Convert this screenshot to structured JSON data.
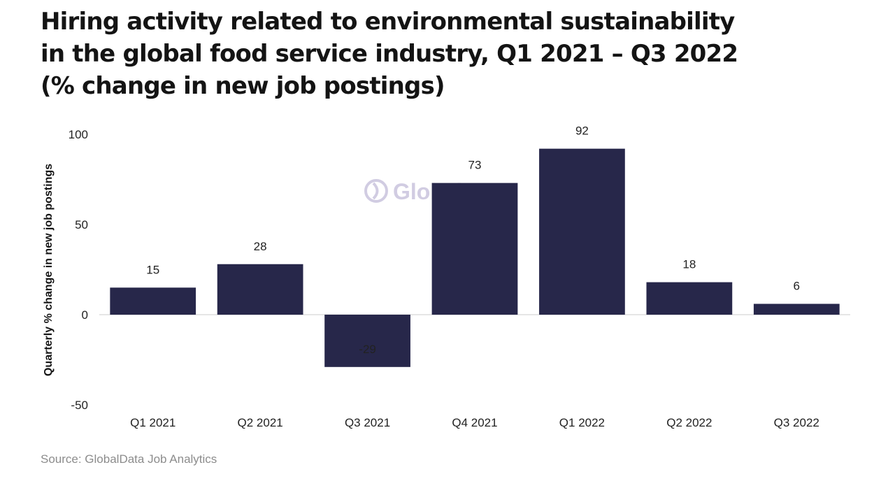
{
  "title": "Hiring activity related to environmental sustainability in the global food service industry, Q1 2021 – Q3 2022 (% change in new job postings)",
  "source": "Source: GlobalData Job Analytics",
  "watermark": "GlobalData.",
  "colors": {
    "bar": "#27274a",
    "axis": "#cccccc",
    "watermark": "#c9c4dd"
  },
  "chart_data": {
    "type": "bar",
    "title": "Hiring activity related to environmental sustainability in the global food service industry, Q1 2021 – Q3 2022 (% change in new job postings)",
    "xlabel": "",
    "ylabel": "Quarterly % change in new job postings",
    "categories": [
      "Q1 2021",
      "Q2 2021",
      "Q3 2021",
      "Q4 2021",
      "Q1 2022",
      "Q2 2022",
      "Q3 2022"
    ],
    "values": [
      15,
      28,
      -29,
      73,
      92,
      18,
      6
    ],
    "data_labels": [
      "15",
      "28",
      "-29",
      "73",
      "92",
      "18",
      "6"
    ],
    "ylim": [
      -50,
      100
    ],
    "yticks": [
      -50,
      0,
      50,
      100
    ],
    "ytick_labels": [
      "-50",
      "0",
      "50",
      "100"
    ],
    "grid": false,
    "legend": "none"
  }
}
